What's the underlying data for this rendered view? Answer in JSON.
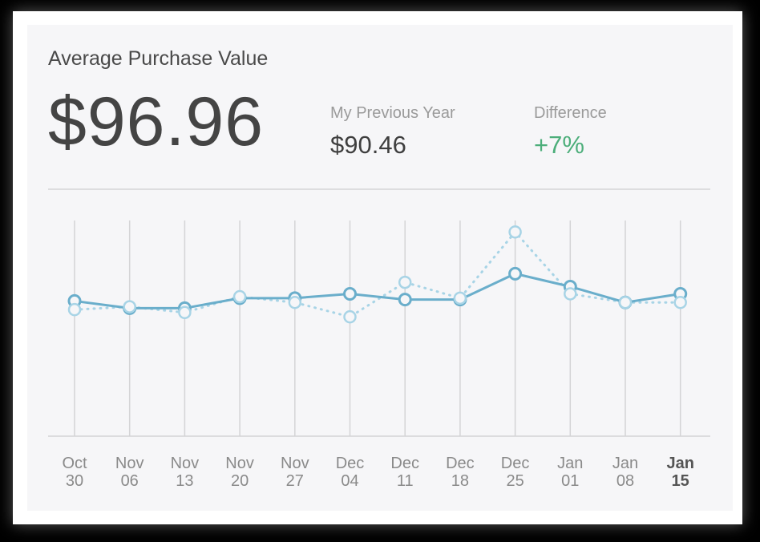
{
  "card": {
    "title": "Average Purchase Value",
    "value": "$96.96",
    "previous": {
      "label": "My Previous Year",
      "value": "$90.46"
    },
    "difference": {
      "label": "Difference",
      "value": "+7%"
    }
  },
  "colors": {
    "current_line": "#6aaecb",
    "previous_line": "#a8d4e6",
    "difference_positive": "#4cae7a",
    "grid": "#d4d4d6"
  },
  "chart_data": {
    "type": "line",
    "title": "",
    "xlabel": "",
    "ylabel": "",
    "ylim": [
      0,
      150
    ],
    "grid": "vertical",
    "highlighted_category_index": 11,
    "categories": [
      [
        "Oct",
        "30"
      ],
      [
        "Nov",
        "06"
      ],
      [
        "Nov",
        "13"
      ],
      [
        "Nov",
        "20"
      ],
      [
        "Nov",
        "27"
      ],
      [
        "Dec",
        "04"
      ],
      [
        "Dec",
        "11"
      ],
      [
        "Dec",
        "18"
      ],
      [
        "Dec",
        "25"
      ],
      [
        "Jan",
        "01"
      ],
      [
        "Jan",
        "08"
      ],
      [
        "Jan",
        "15"
      ]
    ],
    "series": [
      {
        "style": "solid",
        "values": [
          94,
          89,
          89,
          96,
          96,
          99,
          95,
          95,
          113,
          104,
          93,
          99
        ]
      },
      {
        "style": "dotted",
        "values": [
          88,
          90,
          86,
          97,
          93,
          83,
          107,
          96,
          142,
          99,
          93,
          93
        ]
      }
    ]
  }
}
